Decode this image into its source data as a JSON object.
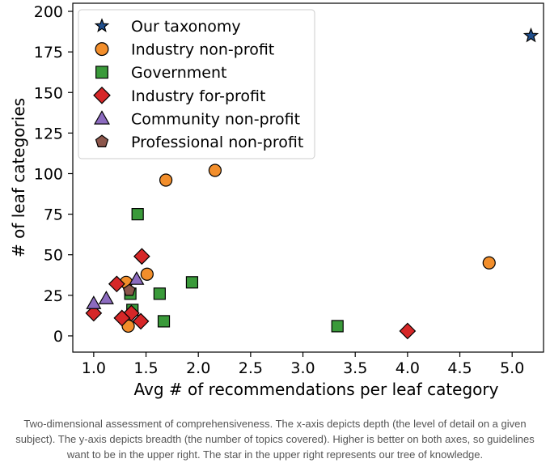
{
  "chart_data": {
    "type": "scatter",
    "xlabel": "Avg # of recommendations per leaf category",
    "ylabel": "# of leaf categories",
    "xlim": [
      0.8,
      5.3
    ],
    "ylim": [
      -10,
      205
    ],
    "xticks": [
      1.0,
      1.5,
      2.0,
      2.5,
      3.0,
      3.5,
      4.0,
      4.5,
      5.0
    ],
    "xtick_labels": [
      "1.0",
      "1.5",
      "2.0",
      "2.5",
      "3.0",
      "3.5",
      "4.0",
      "4.5",
      "5.0"
    ],
    "yticks": [
      0,
      25,
      50,
      75,
      100,
      125,
      150,
      175,
      200
    ],
    "ytick_labels": [
      "0",
      "25",
      "50",
      "75",
      "100",
      "125",
      "150",
      "175",
      "200"
    ],
    "grid": false,
    "legend": "top-left",
    "series": [
      {
        "name": "Our taxonomy",
        "marker": "star",
        "color": "#1f4e8c",
        "points": [
          [
            5.18,
            185
          ]
        ]
      },
      {
        "name": "Industry non-profit",
        "marker": "circle",
        "color": "#f28e2b",
        "points": [
          [
            2.16,
            102
          ],
          [
            1.69,
            96
          ],
          [
            4.78,
            45
          ],
          [
            1.51,
            38
          ],
          [
            1.31,
            33
          ],
          [
            1.33,
            6
          ]
        ]
      },
      {
        "name": "Government",
        "marker": "square",
        "color": "#3a9a3a",
        "points": [
          [
            1.42,
            75
          ],
          [
            1.94,
            33
          ],
          [
            1.63,
            26
          ],
          [
            1.35,
            26
          ],
          [
            1.37,
            16
          ],
          [
            1.67,
            9
          ],
          [
            3.33,
            6
          ]
        ]
      },
      {
        "name": "Industry for-profit",
        "marker": "diamond",
        "color": "#d62728",
        "points": [
          [
            1.46,
            49
          ],
          [
            1.22,
            32
          ],
          [
            1.36,
            14
          ],
          [
            1.27,
            11
          ],
          [
            1.45,
            9
          ],
          [
            1.0,
            14
          ],
          [
            4.0,
            3
          ]
        ]
      },
      {
        "name": "Community non-profit",
        "marker": "triangle",
        "color": "#8c6bbf",
        "points": [
          [
            1.0,
            20
          ],
          [
            1.12,
            23
          ],
          [
            1.41,
            35
          ]
        ]
      },
      {
        "name": "Professional non-profit",
        "marker": "pentagon",
        "color": "#8c564b",
        "points": [
          [
            1.34,
            28
          ]
        ]
      }
    ]
  },
  "caption": "Two-dimensional assessment of comprehensiveness. The x-axis depicts depth (the level of detail on a given subject). The y-axis depicts breadth (the number of topics covered). Higher is better on both axes, so guidelines want to be in the upper right. The star in the upper right represents our tree of knowledge."
}
